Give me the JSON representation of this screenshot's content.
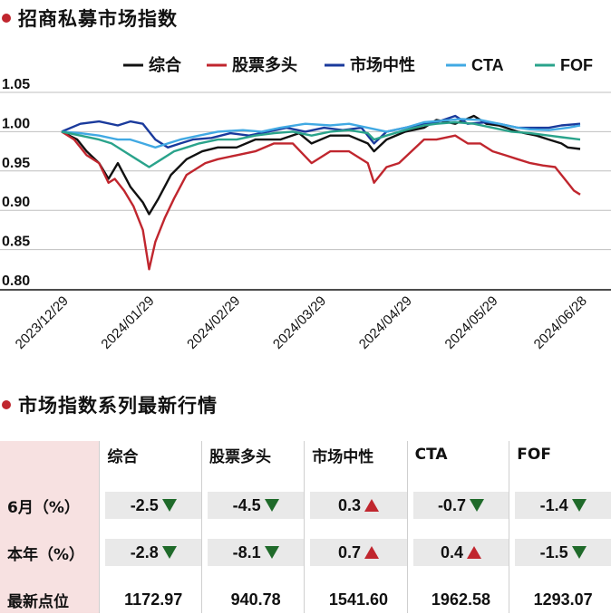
{
  "title1": "招商私募市场指数",
  "title2": "市场指数系列最新行情",
  "chart_data": {
    "type": "line",
    "yticks": [
      "1.05",
      "1.00",
      "0.95",
      "0.90",
      "0.85",
      "0.80"
    ],
    "ylim": [
      0.8,
      1.05
    ],
    "x_ticks": [
      "2023/12/29",
      "2024/01/29",
      "2024/02/29",
      "2024/03/29",
      "2024/04/29",
      "2024/05/29",
      "2024/06/28"
    ],
    "series": [
      {
        "name": "综合",
        "color": "#111111",
        "points": [
          [
            0,
            1.0
          ],
          [
            5,
            0.99
          ],
          [
            8,
            0.975
          ],
          [
            12,
            0.96
          ],
          [
            15,
            0.94
          ],
          [
            18,
            0.96
          ],
          [
            22,
            0.93
          ],
          [
            26,
            0.91
          ],
          [
            28,
            0.895
          ],
          [
            31,
            0.915
          ],
          [
            35,
            0.945
          ],
          [
            40,
            0.965
          ],
          [
            45,
            0.975
          ],
          [
            50,
            0.98
          ],
          [
            56,
            0.98
          ],
          [
            62,
            0.99
          ],
          [
            70,
            0.99
          ],
          [
            76,
            0.998
          ],
          [
            80,
            0.985
          ],
          [
            86,
            0.995
          ],
          [
            92,
            0.995
          ],
          [
            98,
            0.985
          ],
          [
            100,
            0.975
          ],
          [
            104,
            0.99
          ],
          [
            110,
            1.0
          ],
          [
            116,
            1.005
          ],
          [
            120,
            1.015
          ],
          [
            126,
            1.01
          ],
          [
            132,
            1.02
          ],
          [
            136,
            1.01
          ],
          [
            140,
            1.008
          ],
          [
            146,
            1.0
          ],
          [
            152,
            0.995
          ],
          [
            156,
            0.99
          ],
          [
            160,
            0.985
          ],
          [
            162,
            0.98
          ],
          [
            166,
            0.978
          ]
        ]
      },
      {
        "name": "股票多头",
        "color": "#c0262e",
        "points": [
          [
            0,
            1.0
          ],
          [
            4,
            0.99
          ],
          [
            8,
            0.97
          ],
          [
            12,
            0.96
          ],
          [
            15,
            0.935
          ],
          [
            17,
            0.94
          ],
          [
            20,
            0.925
          ],
          [
            23,
            0.905
          ],
          [
            26,
            0.875
          ],
          [
            28,
            0.825
          ],
          [
            30,
            0.86
          ],
          [
            33,
            0.89
          ],
          [
            36,
            0.915
          ],
          [
            40,
            0.945
          ],
          [
            46,
            0.96
          ],
          [
            50,
            0.965
          ],
          [
            56,
            0.97
          ],
          [
            62,
            0.975
          ],
          [
            68,
            0.985
          ],
          [
            74,
            0.985
          ],
          [
            80,
            0.96
          ],
          [
            86,
            0.975
          ],
          [
            92,
            0.975
          ],
          [
            98,
            0.96
          ],
          [
            100,
            0.935
          ],
          [
            104,
            0.955
          ],
          [
            108,
            0.96
          ],
          [
            112,
            0.975
          ],
          [
            116,
            0.99
          ],
          [
            120,
            0.99
          ],
          [
            126,
            0.995
          ],
          [
            130,
            0.985
          ],
          [
            134,
            0.985
          ],
          [
            138,
            0.975
          ],
          [
            142,
            0.97
          ],
          [
            146,
            0.965
          ],
          [
            150,
            0.96
          ],
          [
            154,
            0.957
          ],
          [
            158,
            0.955
          ],
          [
            162,
            0.935
          ],
          [
            164,
            0.925
          ],
          [
            166,
            0.92
          ]
        ]
      },
      {
        "name": "市场中性",
        "color": "#1a3a9c",
        "points": [
          [
            0,
            1.0
          ],
          [
            6,
            1.01
          ],
          [
            12,
            1.013
          ],
          [
            18,
            1.008
          ],
          [
            22,
            1.013
          ],
          [
            26,
            1.01
          ],
          [
            30,
            0.99
          ],
          [
            34,
            0.98
          ],
          [
            38,
            0.985
          ],
          [
            42,
            0.99
          ],
          [
            48,
            0.992
          ],
          [
            54,
            0.998
          ],
          [
            60,
            0.995
          ],
          [
            66,
            1.0
          ],
          [
            72,
            1.005
          ],
          [
            78,
            1.0
          ],
          [
            84,
            1.005
          ],
          [
            90,
            1.002
          ],
          [
            96,
            1.005
          ],
          [
            100,
            0.985
          ],
          [
            104,
            1.0
          ],
          [
            110,
            1.005
          ],
          [
            116,
            1.01
          ],
          [
            120,
            1.012
          ],
          [
            126,
            1.02
          ],
          [
            130,
            1.01
          ],
          [
            136,
            1.012
          ],
          [
            140,
            1.01
          ],
          [
            146,
            1.005
          ],
          [
            150,
            1.005
          ],
          [
            156,
            1.005
          ],
          [
            160,
            1.008
          ],
          [
            166,
            1.01
          ]
        ]
      },
      {
        "name": "CTA",
        "color": "#41a9e3",
        "points": [
          [
            0,
            1.0
          ],
          [
            6,
            0.998
          ],
          [
            12,
            0.995
          ],
          [
            18,
            0.99
          ],
          [
            22,
            0.99
          ],
          [
            26,
            0.985
          ],
          [
            30,
            0.98
          ],
          [
            34,
            0.985
          ],
          [
            38,
            0.99
          ],
          [
            44,
            0.995
          ],
          [
            50,
            1.0
          ],
          [
            58,
            1.002
          ],
          [
            64,
            1.0
          ],
          [
            70,
            1.005
          ],
          [
            78,
            1.01
          ],
          [
            86,
            1.008
          ],
          [
            92,
            1.01
          ],
          [
            98,
            1.005
          ],
          [
            104,
            1.0
          ],
          [
            110,
            1.005
          ],
          [
            116,
            1.012
          ],
          [
            122,
            1.014
          ],
          [
            128,
            1.016
          ],
          [
            134,
            1.015
          ],
          [
            140,
            1.01
          ],
          [
            146,
            1.005
          ],
          [
            150,
            1.003
          ],
          [
            156,
            1.002
          ],
          [
            162,
            1.005
          ],
          [
            166,
            1.008
          ]
        ]
      },
      {
        "name": "FOF",
        "color": "#2aa38b",
        "points": [
          [
            0,
            1.0
          ],
          [
            6,
            0.995
          ],
          [
            12,
            0.99
          ],
          [
            16,
            0.985
          ],
          [
            20,
            0.975
          ],
          [
            24,
            0.965
          ],
          [
            28,
            0.955
          ],
          [
            32,
            0.965
          ],
          [
            36,
            0.975
          ],
          [
            40,
            0.98
          ],
          [
            44,
            0.985
          ],
          [
            50,
            0.99
          ],
          [
            56,
            0.99
          ],
          [
            62,
            0.995
          ],
          [
            68,
            0.998
          ],
          [
            74,
            1.0
          ],
          [
            80,
            0.995
          ],
          [
            86,
            1.0
          ],
          [
            92,
            1.002
          ],
          [
            98,
            0.998
          ],
          [
            100,
            0.99
          ],
          [
            104,
            0.995
          ],
          [
            110,
            1.002
          ],
          [
            116,
            1.008
          ],
          [
            120,
            1.01
          ],
          [
            126,
            1.012
          ],
          [
            132,
            1.01
          ],
          [
            138,
            1.005
          ],
          [
            144,
            1.0
          ],
          [
            150,
            0.998
          ],
          [
            156,
            0.995
          ],
          [
            160,
            0.993
          ],
          [
            166,
            0.99
          ]
        ]
      }
    ],
    "x_range": [
      0,
      166
    ]
  },
  "table": {
    "headers": [
      "综合",
      "股票多头",
      "市场中性",
      "CTA",
      "FOF"
    ],
    "rows": [
      {
        "label": "6月（%）",
        "values": [
          "-2.5",
          "-4.5",
          "0.3",
          "-0.7",
          "-1.4"
        ],
        "dirs": [
          "down",
          "down",
          "up",
          "down",
          "down"
        ],
        "shaded": true
      },
      {
        "label": "本年（%）",
        "values": [
          "-2.8",
          "-8.1",
          "0.7",
          "0.4",
          "-1.5"
        ],
        "dirs": [
          "down",
          "down",
          "up",
          "up",
          "down"
        ],
        "shaded": true
      },
      {
        "label": "最新点位",
        "values": [
          "1172.97",
          "940.78",
          "1541.60",
          "1962.58",
          "1293.07"
        ],
        "dirs": [
          "",
          "",
          "",
          "",
          ""
        ],
        "shaded": false
      }
    ]
  }
}
